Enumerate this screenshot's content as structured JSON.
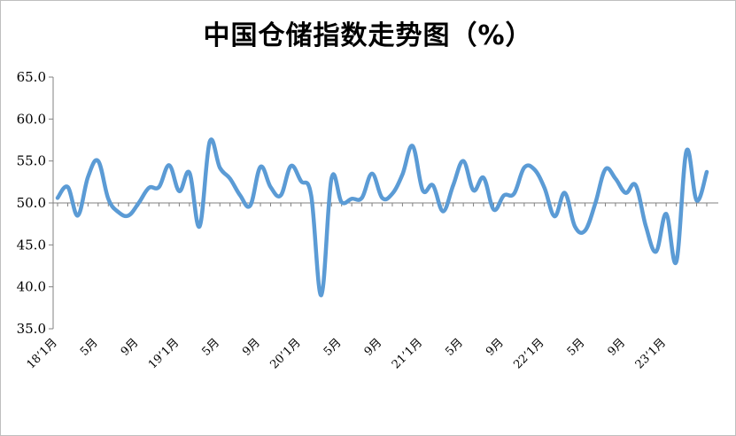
{
  "chart_data": {
    "type": "line",
    "title": "中国仓储指数走势图（%）",
    "xlabel": "",
    "ylabel": "",
    "ylim": [
      35,
      65
    ],
    "yticks": [
      "35.0",
      "40.0",
      "45.0",
      "50.0",
      "55.0",
      "60.0",
      "65.0"
    ],
    "baseline": 50,
    "grid": false,
    "legend": "none",
    "line_color": "#5b9bd5",
    "xtick_labels": [
      "18’1月",
      "5月",
      "9月",
      "19’1月",
      "5月",
      "9月",
      "20’1月",
      "5月",
      "9月",
      "21’1月",
      "5月",
      "9月",
      "22’1月",
      "5月",
      "9月",
      "23’1月"
    ],
    "xtick_index": [
      0,
      4,
      8,
      12,
      16,
      20,
      24,
      28,
      32,
      36,
      40,
      44,
      48,
      52,
      56,
      60
    ],
    "series": [
      {
        "values": [
          50.6,
          51.9,
          48.5,
          53.1,
          55.0,
          50.5,
          48.9,
          48.5,
          50.0,
          51.8,
          51.9,
          54.5,
          51.4,
          53.6,
          47.2,
          57.3,
          54.2,
          52.9,
          50.9,
          49.7,
          54.3,
          51.9,
          50.9,
          54.4,
          52.6,
          50.9,
          39.0,
          52.9,
          50.1,
          50.5,
          50.6,
          53.5,
          50.6,
          51.1,
          53.4,
          56.8,
          51.5,
          52.1,
          49.0,
          52.1,
          55.0,
          51.5,
          53.0,
          49.2,
          50.9,
          51.1,
          54.2,
          54.0,
          51.8,
          48.4,
          51.2,
          47.2,
          46.7,
          49.9,
          54.0,
          52.9,
          51.2,
          52.1,
          47.2,
          44.2,
          48.7,
          43.0,
          56.2,
          50.3,
          53.7
        ]
      }
    ]
  }
}
